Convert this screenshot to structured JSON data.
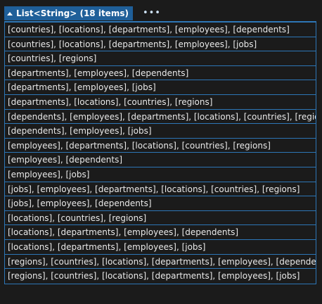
{
  "header": {
    "title": "List<String> (18 items)",
    "more_label": "•••"
  },
  "items": [
    "[countries], [locations], [departments], [employees], [dependents]",
    "[countries], [locations], [departments], [employees], [jobs]",
    "[countries], [regions]",
    "[departments], [employees], [dependents]",
    "[departments], [employees], [jobs]",
    "[departments], [locations], [countries], [regions]",
    "[dependents], [employees], [departments], [locations], [countries], [regions]",
    "[dependents], [employees], [jobs]",
    "[employees], [departments], [locations], [countries], [regions]",
    "[employees], [dependents]",
    "[employees], [jobs]",
    "[jobs], [employees], [departments], [locations], [countries], [regions]",
    "[jobs], [employees], [dependents]",
    "[locations], [countries], [regions]",
    "[locations], [departments], [employees], [dependents]",
    "[locations], [departments], [employees], [jobs]",
    "[regions], [countries], [locations], [departments], [employees], [dependents]",
    "[regions], [countries], [locations], [departments], [employees], [jobs]"
  ],
  "colors": {
    "header_bg": "#1f5f99",
    "border": "#2d76b6",
    "background": "#1b1b1b",
    "text": "#e9e9e9"
  }
}
